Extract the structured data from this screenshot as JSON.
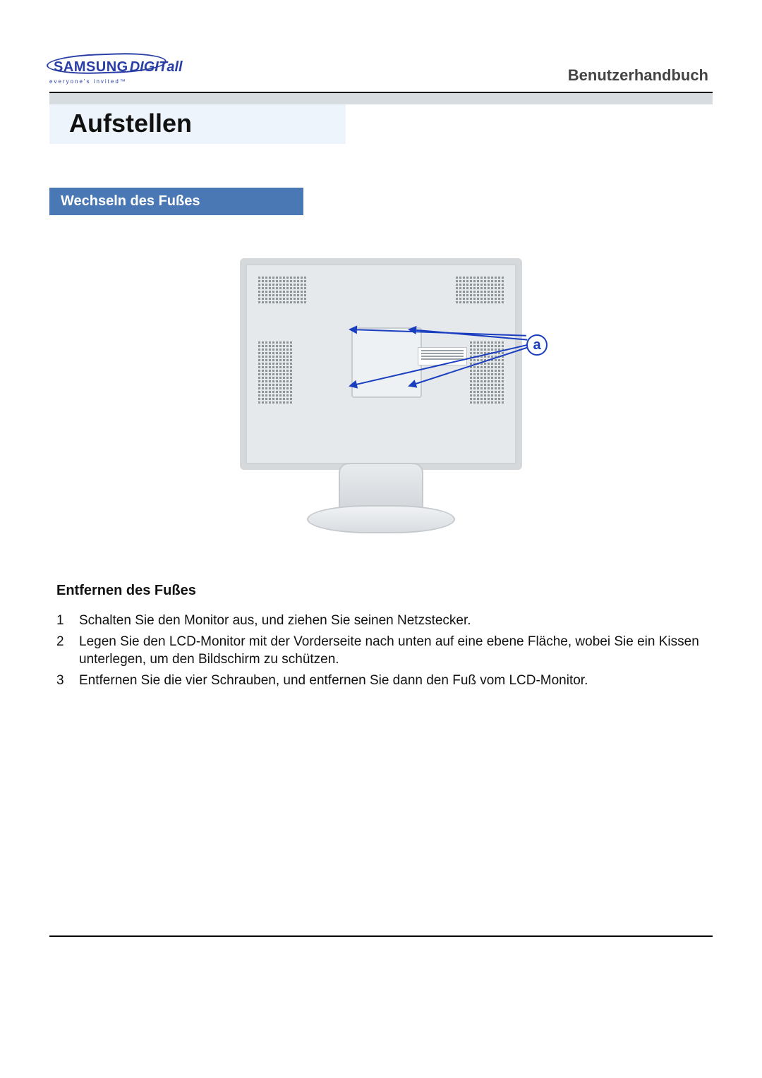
{
  "header": {
    "brand_primary": "SAMSUNG",
    "brand_secondary": "DIGITall",
    "brand_tagline": "everyone's invited™",
    "brand_color": "#2a3fa6",
    "doc_title": "Benutzerhandbuch"
  },
  "section": {
    "title": "Aufstellen",
    "bg_color": "#eef4fb"
  },
  "subsection": {
    "label": "Wechseln des Fußes",
    "bg_color": "#4a78b5",
    "text_color": "#ffffff"
  },
  "figure": {
    "callout_label": "a",
    "arrow_color": "#1a3ec0",
    "monitor_body_color": "#e6e9eb",
    "monitor_border_color": "#d6d9db"
  },
  "instructions": {
    "heading": "Entfernen des Fußes",
    "steps": [
      {
        "n": "1",
        "text": "Schalten Sie den Monitor aus, und ziehen Sie seinen Netzstecker."
      },
      {
        "n": "2",
        "text": "Legen Sie den LCD-Monitor mit der Vorderseite nach unten auf eine ebene Fläche, wobei Sie ein Kissen unterlegen, um den Bildschirm zu schützen."
      },
      {
        "n": "3",
        "text": "Entfernen Sie die vier Schrauben, und entfernen Sie dann den Fuß vom LCD-Monitor."
      }
    ]
  },
  "colors": {
    "rule_dark": "#000000",
    "rule_grey": "#d7dce1",
    "text": "#111111",
    "doc_title_color": "#444444"
  }
}
